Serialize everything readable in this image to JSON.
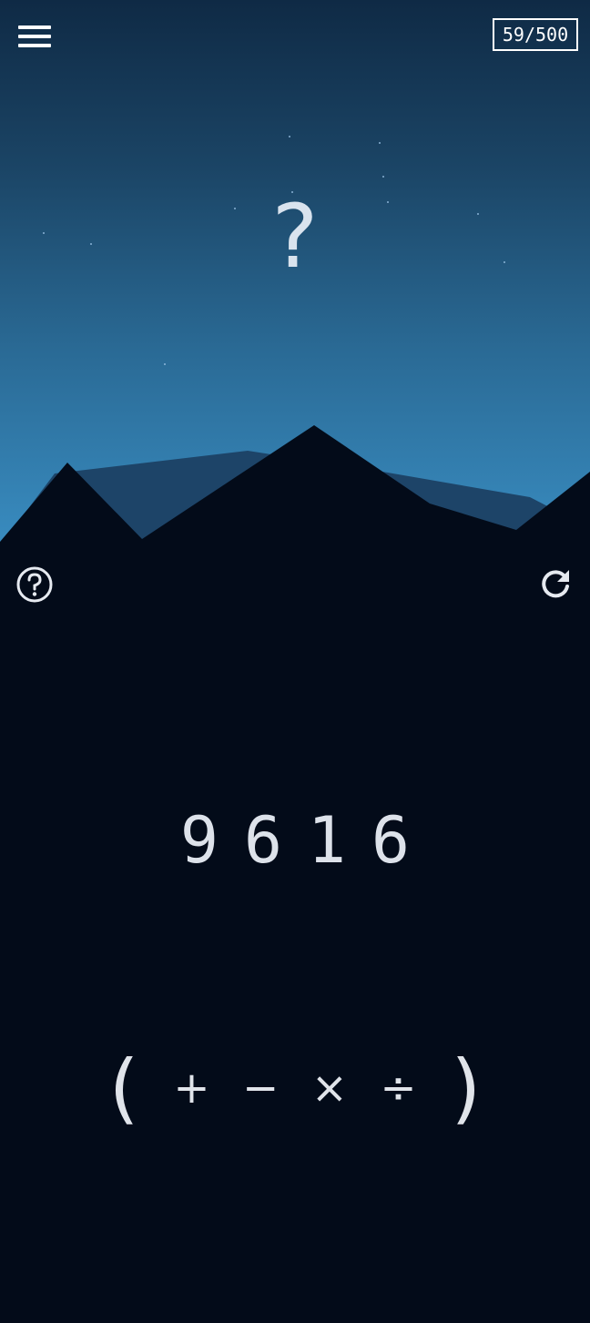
{
  "header": {
    "menu_icon": "hamburger-menu-icon",
    "level_progress": "59/500"
  },
  "puzzle": {
    "target": "?"
  },
  "controls": {
    "help_icon": "question-circle-icon",
    "reset_icon": "refresh-icon"
  },
  "numbers": [
    "9",
    "6",
    "1",
    "6"
  ],
  "operators": {
    "open_paren": "(",
    "plus": "+",
    "minus": "−",
    "times": "×",
    "divide": "÷",
    "close_paren": ")"
  },
  "colors": {
    "sky_top": "#0f2a45",
    "sky_bottom": "#3a8fc4",
    "ground": "#030b19",
    "mountain_far": "#1d4468",
    "text": "#d8dde6"
  }
}
